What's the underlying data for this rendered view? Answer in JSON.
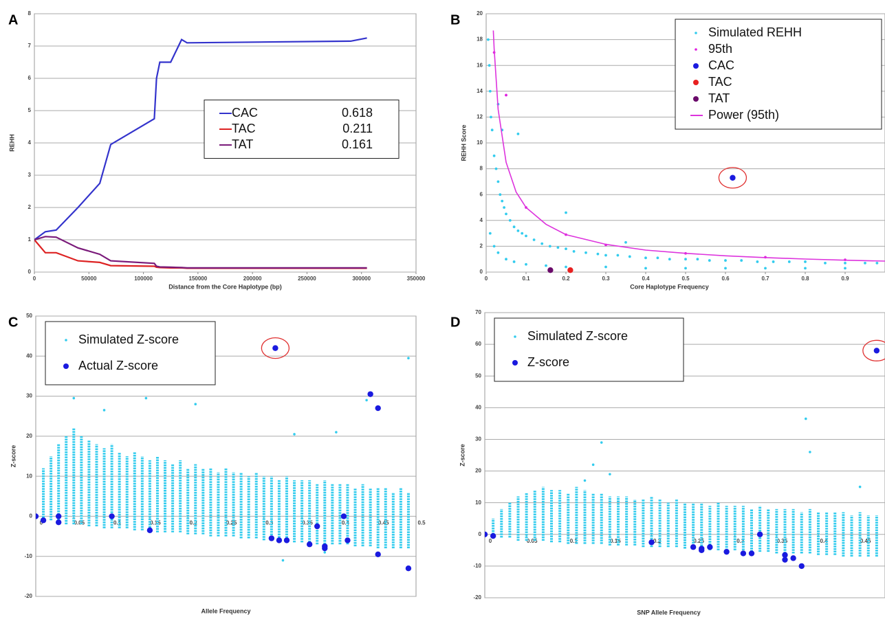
{
  "chart_data": [
    {
      "type": "line",
      "panel": "A",
      "x_label": "Distance from the Core Haplotype (bp)",
      "y_label": "REHH",
      "xlim": [
        0,
        350000
      ],
      "xticks": [
        0,
        50000,
        100000,
        150000,
        200000,
        250000,
        300000,
        350000
      ],
      "ylim": [
        0,
        8
      ],
      "yticks": [
        0,
        1,
        2,
        3,
        4,
        5,
        6,
        7,
        8
      ],
      "grid": true,
      "legend": "center right",
      "x": [
        0,
        10000,
        20000,
        40000,
        60000,
        70000,
        110000,
        112000,
        115000,
        125000,
        135000,
        140000,
        290000,
        305000
      ],
      "series": [
        {
          "name": "CAC",
          "frequency": 0.618,
          "color": "#3333cc",
          "values": [
            1,
            1.25,
            1.3,
            2.0,
            2.75,
            3.95,
            4.75,
            6.0,
            6.5,
            6.5,
            7.2,
            7.1,
            7.15,
            7.25
          ]
        },
        {
          "name": "TAC",
          "frequency": 0.211,
          "color": "#dd2222",
          "values": [
            1,
            0.6,
            0.6,
            0.35,
            0.3,
            0.2,
            0.18,
            0.15,
            0.14,
            0.13,
            0.13,
            0.12,
            0.12,
            0.12
          ]
        },
        {
          "name": "TAT",
          "frequency": 0.161,
          "color": "#7a1a7a",
          "values": [
            1,
            1.1,
            1.08,
            0.75,
            0.55,
            0.35,
            0.27,
            0.18,
            0.16,
            0.15,
            0.14,
            0.13,
            0.13,
            0.13
          ]
        }
      ]
    },
    {
      "type": "scatter",
      "panel": "B",
      "x_label": "Core Haplotype Frequency",
      "y_label": "REHH Score",
      "xlim": [
        0,
        1
      ],
      "xticks": [
        0,
        0.1,
        0.2,
        0.3,
        0.4,
        0.5,
        0.6,
        0.7,
        0.8,
        0.9
      ],
      "ylim": [
        0,
        20
      ],
      "yticks": [
        0,
        2,
        4,
        6,
        8,
        10,
        12,
        14,
        16,
        18,
        20
      ],
      "grid": true,
      "legend": "top right",
      "series": [
        {
          "name": "Simulated REHH",
          "color": "#33ccee",
          "marker": "small",
          "x": [
            0.005,
            0.008,
            0.01,
            0.012,
            0.015,
            0.02,
            0.025,
            0.03,
            0.035,
            0.04,
            0.045,
            0.05,
            0.06,
            0.07,
            0.08,
            0.09,
            0.1,
            0.12,
            0.14,
            0.16,
            0.18,
            0.2,
            0.22,
            0.25,
            0.28,
            0.3,
            0.33,
            0.36,
            0.4,
            0.43,
            0.46,
            0.5,
            0.53,
            0.56,
            0.6,
            0.64,
            0.68,
            0.72,
            0.76,
            0.8,
            0.85,
            0.9,
            0.95,
            0.98,
            0.01,
            0.02,
            0.03,
            0.05,
            0.07,
            0.1,
            0.15,
            0.2,
            0.3,
            0.4,
            0.5,
            0.6,
            0.7,
            0.8,
            0.9,
            0.03,
            0.04,
            0.08,
            0.2,
            0.35
          ],
          "values": [
            18,
            16,
            14,
            12,
            11,
            9,
            8,
            7,
            6,
            5.5,
            5,
            4.5,
            4,
            3.5,
            3.2,
            3,
            2.8,
            2.5,
            2.2,
            2,
            1.9,
            1.8,
            1.6,
            1.5,
            1.4,
            1.3,
            1.3,
            1.2,
            1.1,
            1.1,
            1,
            1,
            1,
            0.9,
            0.9,
            0.9,
            0.8,
            0.8,
            0.8,
            0.8,
            0.7,
            0.7,
            0.7,
            0.7,
            3,
            2,
            1.5,
            1,
            0.8,
            0.6,
            0.5,
            0.4,
            0.4,
            0.3,
            0.3,
            0.3,
            0.3,
            0.3,
            0.3,
            13,
            11,
            10.7,
            4.6,
            2.3
          ]
        },
        {
          "name": "95th",
          "color": "#e020e0",
          "marker": "small",
          "x": [
            0.02,
            0.05,
            0.1,
            0.2,
            0.3,
            0.5,
            0.7,
            0.9
          ],
          "values": [
            17,
            13.7,
            5,
            2.9,
            2.1,
            1.45,
            1.15,
            0.95
          ]
        },
        {
          "name": "CAC",
          "color": "#1a1adf",
          "marker": "large",
          "circled": true,
          "x": [
            0.618
          ],
          "values": [
            7.3
          ]
        },
        {
          "name": "TAC",
          "color": "#e82020",
          "marker": "large",
          "x": [
            0.211
          ],
          "values": [
            0.15
          ]
        },
        {
          "name": "TAT",
          "color": "#6a0a6a",
          "marker": "large",
          "x": [
            0.161
          ],
          "values": [
            0.15
          ]
        },
        {
          "name": "Power (95th)",
          "color": "#dd33dd",
          "marker": "line",
          "x": [
            0.018,
            0.02,
            0.03,
            0.05,
            0.075,
            0.1,
            0.15,
            0.2,
            0.3,
            0.4,
            0.5,
            0.6,
            0.7,
            0.8,
            0.9,
            1.0
          ],
          "values": [
            18.7,
            17.3,
            12.6,
            8.5,
            6.2,
            5.0,
            3.7,
            2.9,
            2.15,
            1.7,
            1.45,
            1.26,
            1.12,
            1.01,
            0.92,
            0.85
          ]
        }
      ]
    },
    {
      "type": "scatter",
      "panel": "C",
      "x_label": "Allele Frequency",
      "y_label": "Z-score",
      "x_labels_at_zero": true,
      "xlim": [
        0,
        0.5
      ],
      "xticks": [
        0,
        0.05,
        0.1,
        0.15,
        0.2,
        0.25,
        0.3,
        0.35,
        0.4,
        0.45,
        0.5
      ],
      "ylim": [
        -20,
        50
      ],
      "yticks": [
        -20,
        -10,
        0,
        10,
        20,
        30,
        40,
        50
      ],
      "grid": true,
      "legend": "top left",
      "series": [
        {
          "name": "Simulated Z-score",
          "color": "#33ccee",
          "marker": "range",
          "x": [
            0.01,
            0.02,
            0.03,
            0.04,
            0.05,
            0.06,
            0.07,
            0.08,
            0.09,
            0.1,
            0.11,
            0.12,
            0.13,
            0.14,
            0.15,
            0.16,
            0.17,
            0.18,
            0.19,
            0.2,
            0.21,
            0.22,
            0.23,
            0.24,
            0.25,
            0.26,
            0.27,
            0.28,
            0.29,
            0.3,
            0.31,
            0.32,
            0.33,
            0.34,
            0.35,
            0.36,
            0.37,
            0.38,
            0.39,
            0.4,
            0.41,
            0.42,
            0.43,
            0.44,
            0.45,
            0.46,
            0.47,
            0.48,
            0.49
          ],
          "low": [
            -1,
            -1,
            -1.5,
            -2,
            -2,
            -2,
            -2.5,
            -2.5,
            -3,
            -3,
            -3,
            -3,
            -3.5,
            -3.5,
            -3.5,
            -4,
            -4,
            -4,
            -4,
            -4.5,
            -4.5,
            -4.5,
            -5,
            -5,
            -5,
            -5,
            -5.5,
            -5.5,
            -5.5,
            -6,
            -6,
            -6,
            -6,
            -6.5,
            -6.5,
            -6.5,
            -7,
            -7,
            -7,
            -7,
            -7,
            -7.5,
            -7.5,
            -7.5,
            -8,
            -8,
            -8,
            -8,
            -8
          ],
          "high": [
            12,
            15,
            18,
            20,
            22,
            20,
            19,
            18,
            17,
            18,
            16,
            15,
            16,
            15,
            14,
            15,
            14,
            13,
            14,
            12,
            13,
            12,
            12,
            11,
            12,
            11,
            11,
            10,
            11,
            10,
            10,
            9,
            10,
            9,
            9,
            9,
            8,
            9,
            8,
            8,
            8,
            7,
            8,
            7,
            7,
            7,
            6,
            7,
            6
          ],
          "outliers": {
            "x": [
              0.05,
              0.09,
              0.145,
              0.21,
              0.395,
              0.435,
              0.49,
              0.325,
              0.38,
              0.34
            ],
            "values": [
              29.5,
              26.5,
              29.5,
              28,
              21,
              29,
              39.5,
              -11,
              -9,
              20.5
            ]
          }
        },
        {
          "name": "Actual Z-score",
          "color": "#1a1adf",
          "marker": "large",
          "circled": true,
          "x": [
            0,
            0.01,
            0.03,
            0.03,
            0.1,
            0.15,
            0.31,
            0.315,
            0.32,
            0.33,
            0.36,
            0.37,
            0.38,
            0.38,
            0.405,
            0.41,
            0.44,
            0.45,
            0.45,
            0.49
          ],
          "values": [
            0,
            -1,
            0,
            -1.5,
            0,
            -3.5,
            -5.5,
            42,
            -6,
            -6,
            -7,
            -2.5,
            -7.5,
            -8,
            0,
            -6,
            30.5,
            27,
            -9.5,
            -13
          ]
        }
      ]
    },
    {
      "type": "scatter",
      "panel": "D",
      "x_label": "SNP Allele Frequency",
      "y_label": "Z-score",
      "x_labels_at_zero": true,
      "xlim": [
        0,
        0.48
      ],
      "xticks": [
        0,
        0.05,
        0.1,
        0.15,
        0.2,
        0.25,
        0.3,
        0.35,
        0.4,
        0.45
      ],
      "ylim": [
        -20,
        70
      ],
      "yticks": [
        -20,
        -10,
        0,
        10,
        20,
        30,
        40,
        50,
        60,
        70
      ],
      "grid": true,
      "legend": "top left",
      "series": [
        {
          "name": "Simulated Z-score",
          "color": "#33ccee",
          "marker": "range",
          "x": [
            0.01,
            0.02,
            0.03,
            0.04,
            0.05,
            0.06,
            0.07,
            0.08,
            0.09,
            0.1,
            0.11,
            0.12,
            0.13,
            0.14,
            0.15,
            0.16,
            0.17,
            0.18,
            0.19,
            0.2,
            0.21,
            0.22,
            0.23,
            0.24,
            0.25,
            0.26,
            0.27,
            0.28,
            0.29,
            0.3,
            0.31,
            0.32,
            0.33,
            0.34,
            0.35,
            0.36,
            0.37,
            0.38,
            0.39,
            0.4,
            0.41,
            0.42,
            0.43,
            0.44,
            0.45,
            0.46,
            0.47
          ],
          "low": [
            0,
            -1,
            -1,
            -2,
            -2,
            -2,
            -2,
            -2.5,
            -2.5,
            -3,
            -3,
            -3,
            -3,
            -3,
            -3.5,
            -3.5,
            -3.5,
            -3.5,
            -4,
            -4,
            -4,
            -4,
            -4,
            -4.5,
            -4.5,
            -4.5,
            -5,
            -5,
            -5,
            -5,
            -5,
            -5.5,
            -5.5,
            -5.5,
            -6,
            -6,
            -6,
            -6,
            -6,
            -6.5,
            -6.5,
            -6.5,
            -7,
            -7,
            -7,
            -7,
            -7
          ],
          "high": [
            5,
            8,
            10,
            12,
            13,
            14,
            15,
            14,
            14,
            13,
            15,
            14,
            13,
            13,
            12,
            12,
            12,
            11,
            11,
            12,
            11,
            10,
            11,
            10,
            10,
            10,
            9,
            10,
            9,
            9,
            9,
            8,
            9,
            8,
            8,
            8,
            8,
            7,
            8,
            7,
            7,
            7,
            7,
            6,
            7,
            6,
            6
          ],
          "outliers": {
            "x": [
              0.12,
              0.13,
              0.14,
              0.15,
              0.385,
              0.39,
              0.45
            ],
            "values": [
              17,
              22,
              29,
              19,
              36.5,
              26,
              15
            ]
          }
        },
        {
          "name": "Z-score",
          "color": "#1a1adf",
          "marker": "large",
          "circled": true,
          "x": [
            0,
            0.01,
            0.2,
            0.25,
            0.26,
            0.26,
            0.27,
            0.29,
            0.31,
            0.32,
            0.33,
            0.36,
            0.36,
            0.37,
            0.38,
            0.47
          ],
          "values": [
            0,
            -0.5,
            -2.5,
            -4,
            -4.5,
            -5,
            -4,
            -5.5,
            -6,
            -6,
            0,
            -6.5,
            -8,
            -7.5,
            -10,
            58
          ]
        }
      ]
    }
  ]
}
